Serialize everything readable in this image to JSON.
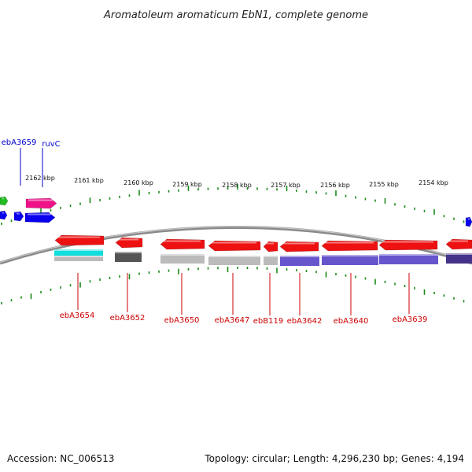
{
  "title": "Aromatoleum aromaticum EbN1, complete genome",
  "footer": {
    "accession": "Accession: NC_006513",
    "summary": "Topology: circular; Length: 4,296,230 bp; Genes: 4,194"
  },
  "colors": {
    "forward_label": "#0000cc",
    "reverse_label": "#cc0000",
    "tick": "#1a8a1a",
    "backbone": "#8a8a8a",
    "gene_red": "#ee1111",
    "gene_blue": "#0a00ee",
    "gene_magenta": "#ee1188",
    "gene_green": "#22bb22",
    "feat_cyan": "#11dddd",
    "feat_gray": "#bbbbbb",
    "feat_dark": "#555555",
    "feat_purple": "#6655cc",
    "feat_navy": "#443388"
  },
  "scale_labels": [
    "2162 kbp",
    "2161 kbp",
    "2160 kbp",
    "2159 kbp",
    "2158 kbp",
    "2157 kbp",
    "2156 kbp",
    "2155 kbp",
    "2154 kbp"
  ],
  "forward_labels": [
    "ebA3659",
    "ruvC"
  ],
  "reverse_labels": [
    "ebA3654",
    "ebA3652",
    "ebA3650",
    "ebA3647",
    "ebB119",
    "ebA3642",
    "ebA3640",
    "ebA3639"
  ]
}
